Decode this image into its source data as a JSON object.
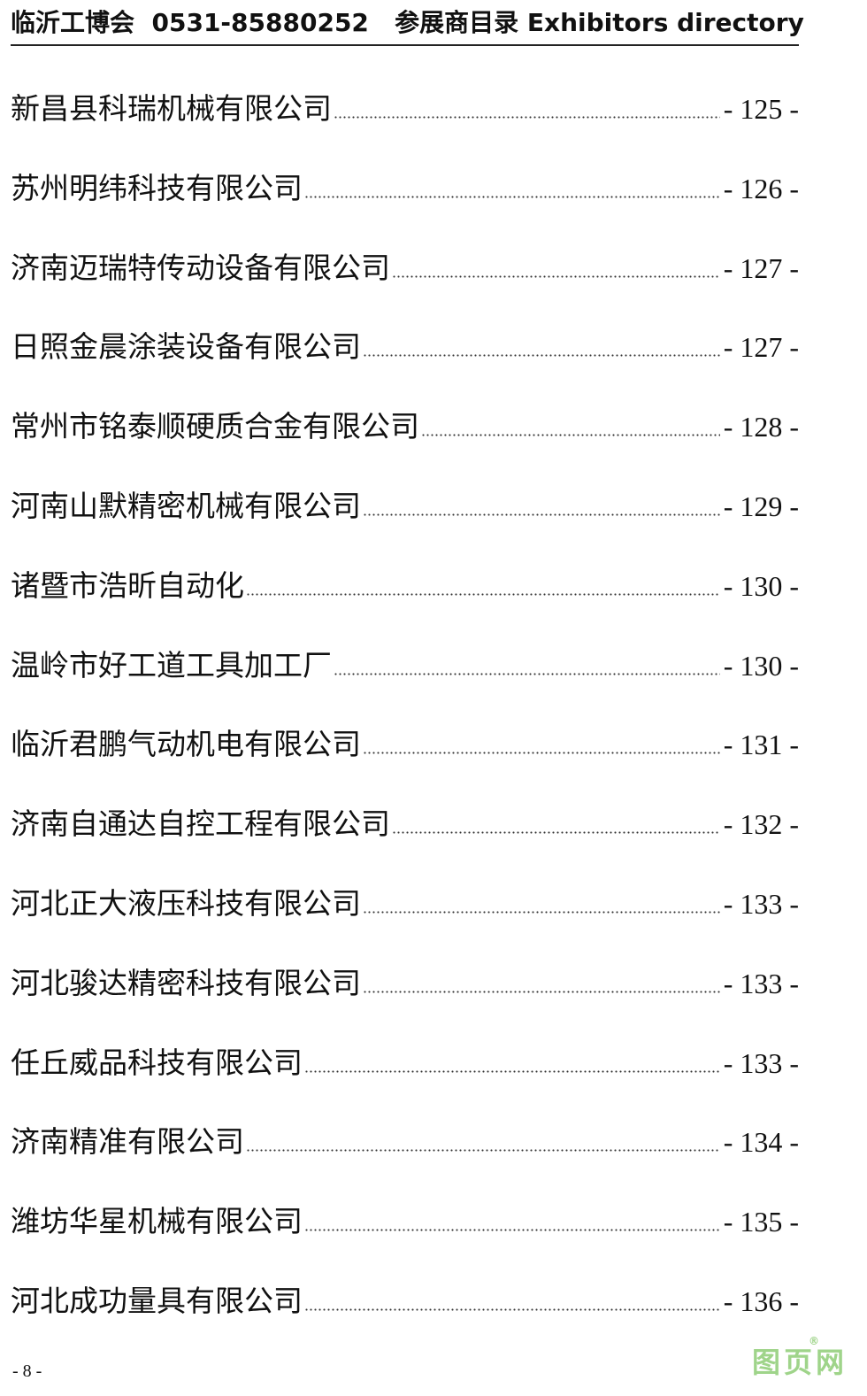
{
  "header": {
    "title": "临沂工博会  0531-85880252   参展商目录 Exhibitors directory"
  },
  "entries": [
    {
      "name": "新昌县科瑞机械有限公司",
      "page": "- 125 -"
    },
    {
      "name": "苏州明纬科技有限公司",
      "page": "- 126 -"
    },
    {
      "name": "济南迈瑞特传动设备有限公司",
      "page": "- 127 -"
    },
    {
      "name": "日照金晨涂装设备有限公司",
      "page": "- 127 -"
    },
    {
      "name": "常州市铭泰顺硬质合金有限公司",
      "page": "- 128 -"
    },
    {
      "name": "河南山默精密机械有限公司",
      "page": "- 129 -"
    },
    {
      "name": "诸暨市浩昕自动化",
      "page": "- 130 -"
    },
    {
      "name": "温岭市好工道工具加工厂",
      "page": "- 130 -"
    },
    {
      "name": "临沂君鹏气动机电有限公司",
      "page": "- 131 -"
    },
    {
      "name": "济南自通达自控工程有限公司",
      "page": "- 132 -"
    },
    {
      "name": "河北正大液压科技有限公司",
      "page": "- 133 -"
    },
    {
      "name": "河北骏达精密科技有限公司",
      "page": "- 133 -"
    },
    {
      "name": "任丘威品科技有限公司",
      "page": "- 133 -"
    },
    {
      "name": "济南精准有限公司",
      "page": "- 134 -"
    },
    {
      "name": "潍坊华星机械有限公司",
      "page": "- 135 -"
    },
    {
      "name": "河北成功量具有限公司",
      "page": "- 136 -"
    }
  ],
  "footer": {
    "page_number": "- 8 -"
  },
  "watermark": {
    "text": "图页网",
    "mark": "®"
  }
}
